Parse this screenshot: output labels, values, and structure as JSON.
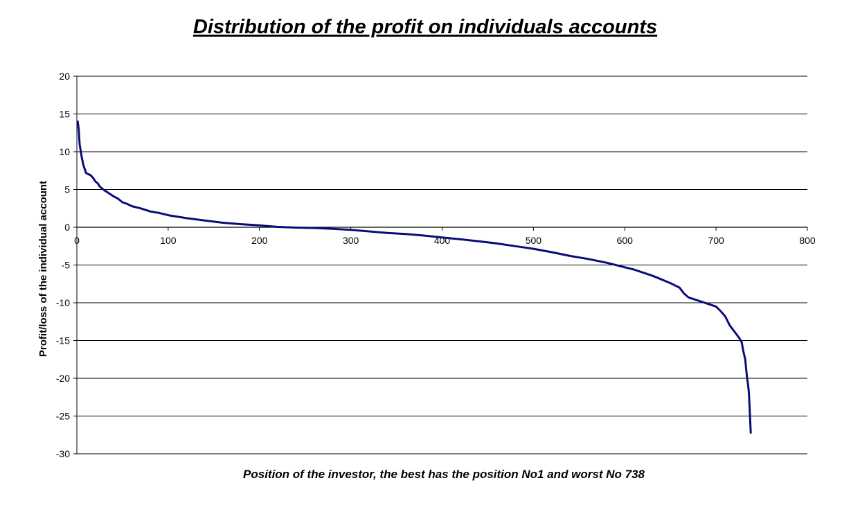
{
  "chart_data": {
    "type": "line",
    "title": "Distribution of the profit on individuals accounts",
    "xlabel": "Position of the investor, the best has the position No1 and worst No 738",
    "ylabel": "Profit/loss of the individual account",
    "xlim": [
      0,
      800
    ],
    "ylim": [
      -30,
      20
    ],
    "x_ticks": [
      "0",
      "100",
      "200",
      "300",
      "400",
      "500",
      "600",
      "700",
      "800"
    ],
    "y_ticks": [
      "20",
      "15",
      "10",
      "5",
      "0",
      "-5",
      "-10",
      "-15",
      "-20",
      "-25",
      "-30"
    ],
    "grid": "horizontal",
    "legend": "none",
    "series": [
      {
        "color": "#0b0b7a",
        "x": [
          1,
          2,
          3,
          5,
          7,
          10,
          13,
          15,
          18,
          20,
          23,
          25,
          30,
          35,
          40,
          45,
          50,
          55,
          60,
          70,
          80,
          90,
          100,
          120,
          140,
          160,
          180,
          200,
          220,
          240,
          260,
          280,
          300,
          320,
          340,
          360,
          380,
          400,
          420,
          440,
          460,
          480,
          500,
          520,
          540,
          560,
          580,
          600,
          610,
          620,
          630,
          640,
          650,
          660,
          665,
          670,
          680,
          690,
          700,
          705,
          710,
          715,
          720,
          725,
          728,
          730,
          732,
          733,
          734,
          735,
          736,
          737,
          738
        ],
        "y": [
          14,
          13,
          11,
          9.5,
          8.3,
          7.2,
          7,
          6.9,
          6.5,
          6.1,
          5.8,
          5.4,
          4.9,
          4.5,
          4.1,
          3.8,
          3.3,
          3.1,
          2.8,
          2.5,
          2.1,
          1.9,
          1.6,
          1.2,
          0.9,
          0.6,
          0.4,
          0.25,
          0.05,
          -0.05,
          -0.1,
          -0.2,
          -0.35,
          -0.55,
          -0.75,
          -0.9,
          -1.1,
          -1.35,
          -1.6,
          -1.85,
          -2.15,
          -2.5,
          -2.85,
          -3.3,
          -3.8,
          -4.2,
          -4.7,
          -5.3,
          -5.6,
          -6.0,
          -6.4,
          -6.9,
          -7.4,
          -8.0,
          -8.8,
          -9.3,
          -9.7,
          -10.1,
          -10.5,
          -11.1,
          -11.8,
          -13.0,
          -13.8,
          -14.6,
          -15.2,
          -16.5,
          -17.5,
          -18.8,
          -20.0,
          -20.8,
          -22.0,
          -24.5,
          -27.2
        ]
      }
    ]
  }
}
